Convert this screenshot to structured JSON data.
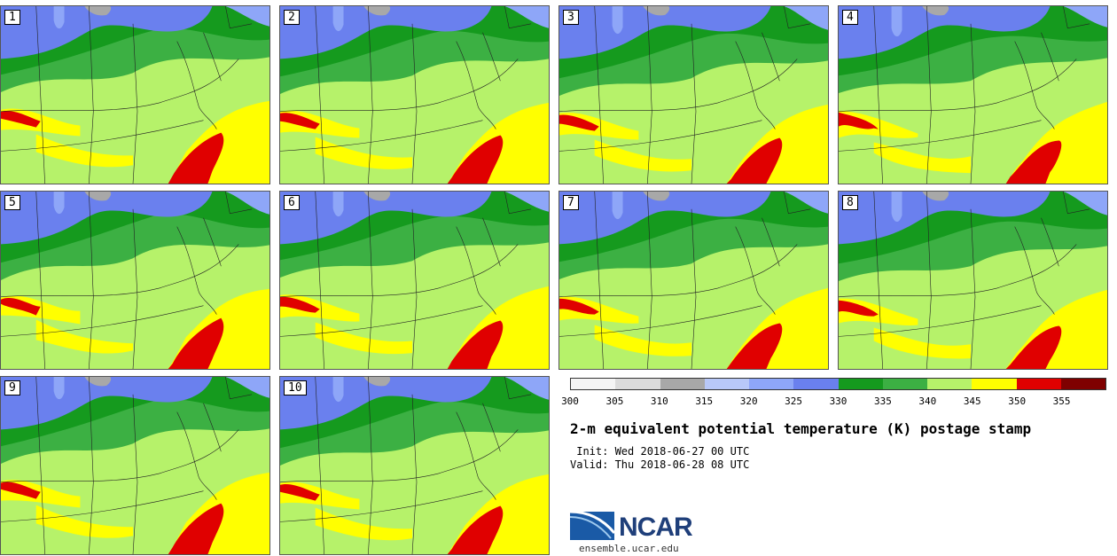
{
  "panels": [
    {
      "label": "1",
      "variant": 0
    },
    {
      "label": "2",
      "variant": 1
    },
    {
      "label": "3",
      "variant": 2
    },
    {
      "label": "4",
      "variant": 3
    },
    {
      "label": "5",
      "variant": 4
    },
    {
      "label": "6",
      "variant": 5
    },
    {
      "label": "7",
      "variant": 6
    },
    {
      "label": "8",
      "variant": 7
    },
    {
      "label": "9",
      "variant": 8
    },
    {
      "label": "10",
      "variant": 9
    }
  ],
  "colorbar": {
    "ticks": [
      "300",
      "305",
      "310",
      "315",
      "320",
      "325",
      "330",
      "335",
      "340",
      "345",
      "350",
      "355"
    ],
    "colors": [
      "#f5f5f5",
      "#dcdcdc",
      "#a8a8a8",
      "#b8c8f8",
      "#8ea6f8",
      "#6a80ee",
      "#159a1e",
      "#3cb043",
      "#b6f26a",
      "#ffff00",
      "#e00000",
      "#7f0000"
    ]
  },
  "title": "2-m equivalent potential temperature (K) postage stamp",
  "init": " Init: Wed 2018-06-27 00 UTC",
  "valid": "Valid: Thu 2018-06-28 08 UTC",
  "logo": {
    "text": "NCAR",
    "url": "ensemble.ucar.edu"
  },
  "map_colors": {
    "blue": "#6a80ee",
    "lightblue": "#8ea6f8",
    "gray": "#a8a8a8",
    "darkgreen": "#159a1e",
    "green": "#3cb043",
    "lightgreen": "#b6f26a",
    "yellow": "#ffff00",
    "red": "#e00000"
  }
}
